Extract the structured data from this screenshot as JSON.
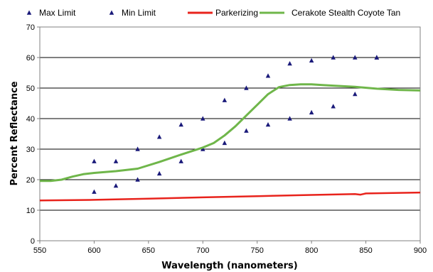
{
  "chart_data": {
    "type": "line",
    "xlabel": "Wavelength (nanometers)",
    "ylabel": "Percent Reflectance",
    "xlim": [
      550,
      900
    ],
    "ylim": [
      0,
      70
    ],
    "xticks": [
      "550",
      "600",
      "650",
      "700",
      "750",
      "800",
      "850",
      "900"
    ],
    "yticks": [
      "0",
      "10",
      "20",
      "30",
      "40",
      "50",
      "60",
      "70"
    ],
    "grid": "horizontal",
    "legend_position": "top",
    "series": [
      {
        "name": "Max Limit",
        "kind": "scatter",
        "marker": "triangle",
        "color": "#1a1a7a",
        "x": [
          600,
          620,
          640,
          660,
          680,
          700,
          720,
          740,
          760,
          780,
          800,
          820,
          840,
          860
        ],
        "y": [
          26,
          26,
          30,
          34,
          38,
          40,
          46,
          50,
          54,
          58,
          59,
          60,
          60,
          60
        ]
      },
      {
        "name": "Min Limit",
        "kind": "scatter",
        "marker": "triangle",
        "color": "#1a1a7a",
        "x": [
          600,
          620,
          640,
          660,
          680,
          700,
          720,
          740,
          760,
          780,
          800,
          820,
          840,
          860
        ],
        "y": [
          16,
          18,
          20,
          22,
          26,
          30,
          32,
          36,
          38,
          40,
          42,
          44,
          48,
          60
        ]
      },
      {
        "name": "Parkerizing",
        "kind": "line",
        "color": "#e8231c",
        "x": [
          550,
          600,
          650,
          700,
          750,
          800,
          840,
          845,
          850,
          870,
          900
        ],
        "y": [
          13.2,
          13.4,
          13.8,
          14.2,
          14.6,
          15.0,
          15.3,
          15.1,
          15.5,
          15.6,
          15.8
        ]
      },
      {
        "name": "Cerakote Stealth Coyote Tan",
        "kind": "line",
        "color": "#6fb64a",
        "x": [
          550,
          560,
          570,
          580,
          590,
          600,
          620,
          640,
          660,
          680,
          700,
          710,
          720,
          730,
          740,
          750,
          760,
          770,
          780,
          790,
          800,
          810,
          820,
          840,
          860,
          880,
          900
        ],
        "y": [
          19.6,
          19.6,
          20.0,
          21.0,
          21.8,
          22.2,
          22.8,
          23.6,
          25.8,
          28.2,
          30.5,
          32.0,
          34.5,
          37.5,
          41.0,
          44.5,
          48.0,
          50.3,
          51.0,
          51.2,
          51.2,
          51.0,
          50.8,
          50.4,
          49.8,
          49.4,
          49.2
        ]
      }
    ]
  }
}
